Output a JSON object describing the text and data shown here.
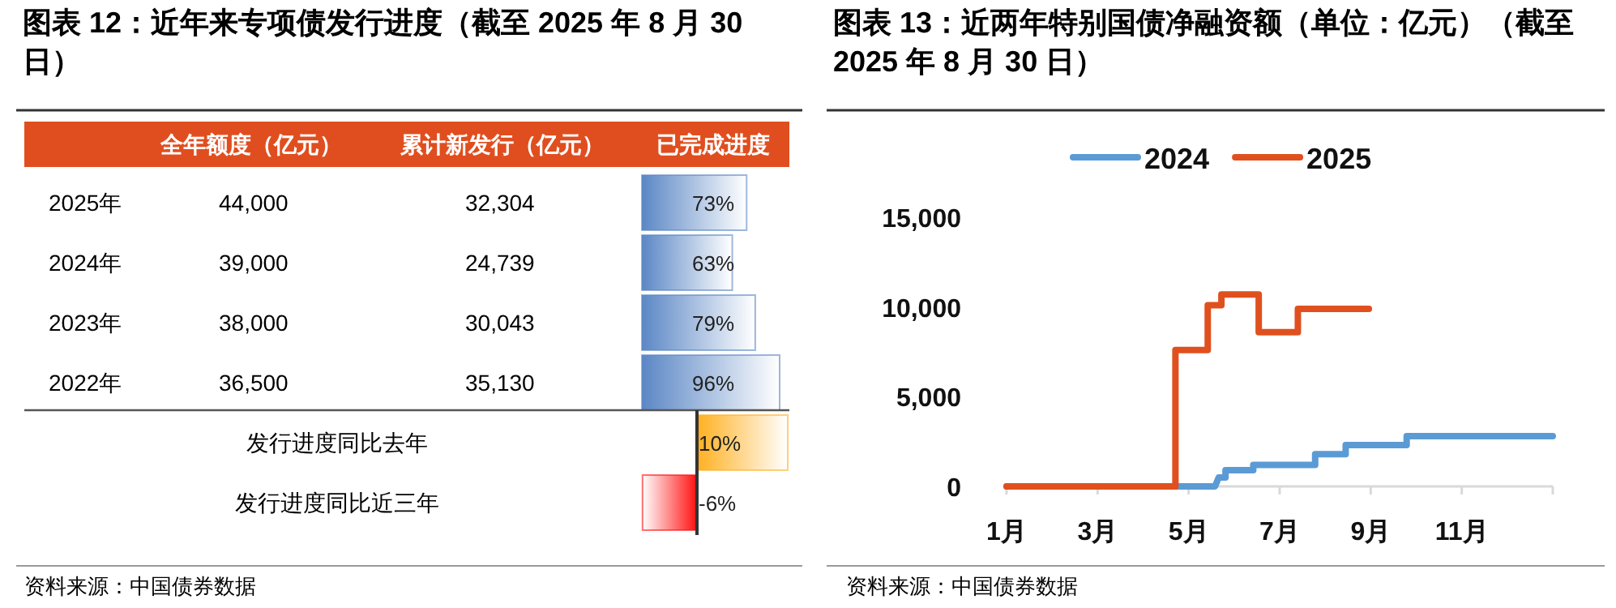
{
  "chart_data": [
    {
      "type": "bar",
      "orientation": "horizontal",
      "title": "图表 12：近年来专项债发行进度（截至 2025 年 8 月 30 日）",
      "categories": [
        "2025年",
        "2024年",
        "2023年",
        "2022年"
      ],
      "values": [
        73,
        63,
        79,
        96
      ],
      "value_labels": [
        "73%",
        "63%",
        "79%",
        "96%"
      ],
      "color": "#5b87c5",
      "annotations": [
        "全年额度（亿元）",
        "累计新发行（亿元）",
        "已完成进度",
        "44,000",
        "32,304",
        "39,000",
        "24,739",
        "38,000",
        "30,043",
        "36,500",
        "35,130"
      ]
    },
    {
      "type": "bar",
      "orientation": "horizontal",
      "categories": [
        "发行进度同比去年",
        "发行进度同比近三年"
      ],
      "values": [
        10,
        -6
      ],
      "value_labels": [
        "10%",
        "-6%"
      ],
      "colors": [
        "#ffb020",
        "#ff1010"
      ],
      "annotations": [
        "资料来源：中国债券数据"
      ]
    },
    {
      "type": "line",
      "title": "图表 13：近两年特别国债净融资额（单位：亿元）（截至 2025 年 8 月 30 日）",
      "xlim": [
        1,
        13
      ],
      "xticks": [
        {
          "value": 1,
          "label": "1月"
        },
        {
          "value": 3,
          "label": "3月"
        },
        {
          "value": 5,
          "label": "5月"
        },
        {
          "value": 7,
          "label": "7月"
        },
        {
          "value": 9,
          "label": "9月"
        },
        {
          "value": 11,
          "label": "11月"
        },
        {
          "value": 13,
          "label": null
        }
      ],
      "ylim": [
        0,
        15000
      ],
      "yticks": [
        {
          "value": 0,
          "label": "0"
        },
        {
          "value": 5000,
          "label": "5,000"
        },
        {
          "value": 10000,
          "label": "10,000"
        },
        {
          "value": 15000,
          "label": "15,000"
        }
      ],
      "legend": "top",
      "series": [
        {
          "name": "2024",
          "color": "#5b9bd5",
          "x": [
            1,
            5.58,
            5.66,
            5.81,
            5.81,
            6.42,
            6.42,
            7.78,
            7.78,
            8.45,
            8.45,
            9.79,
            9.79,
            13
          ],
          "values": [
            0,
            0,
            500,
            500,
            900,
            900,
            1200,
            1200,
            1800,
            1800,
            2300,
            2300,
            2800,
            2800
          ]
        },
        {
          "name": "2025",
          "color": "#e0501e",
          "x": [
            1,
            4.71,
            4.71,
            5.42,
            5.42,
            5.72,
            5.72,
            6.54,
            6.54,
            7.4,
            7.4,
            8.96
          ],
          "values": [
            0,
            0,
            7600,
            7600,
            10100,
            10100,
            10700,
            10700,
            8600,
            8600,
            9900,
            9900
          ]
        }
      ],
      "annotations": [
        "资料来源：中国债券数据"
      ]
    }
  ]
}
